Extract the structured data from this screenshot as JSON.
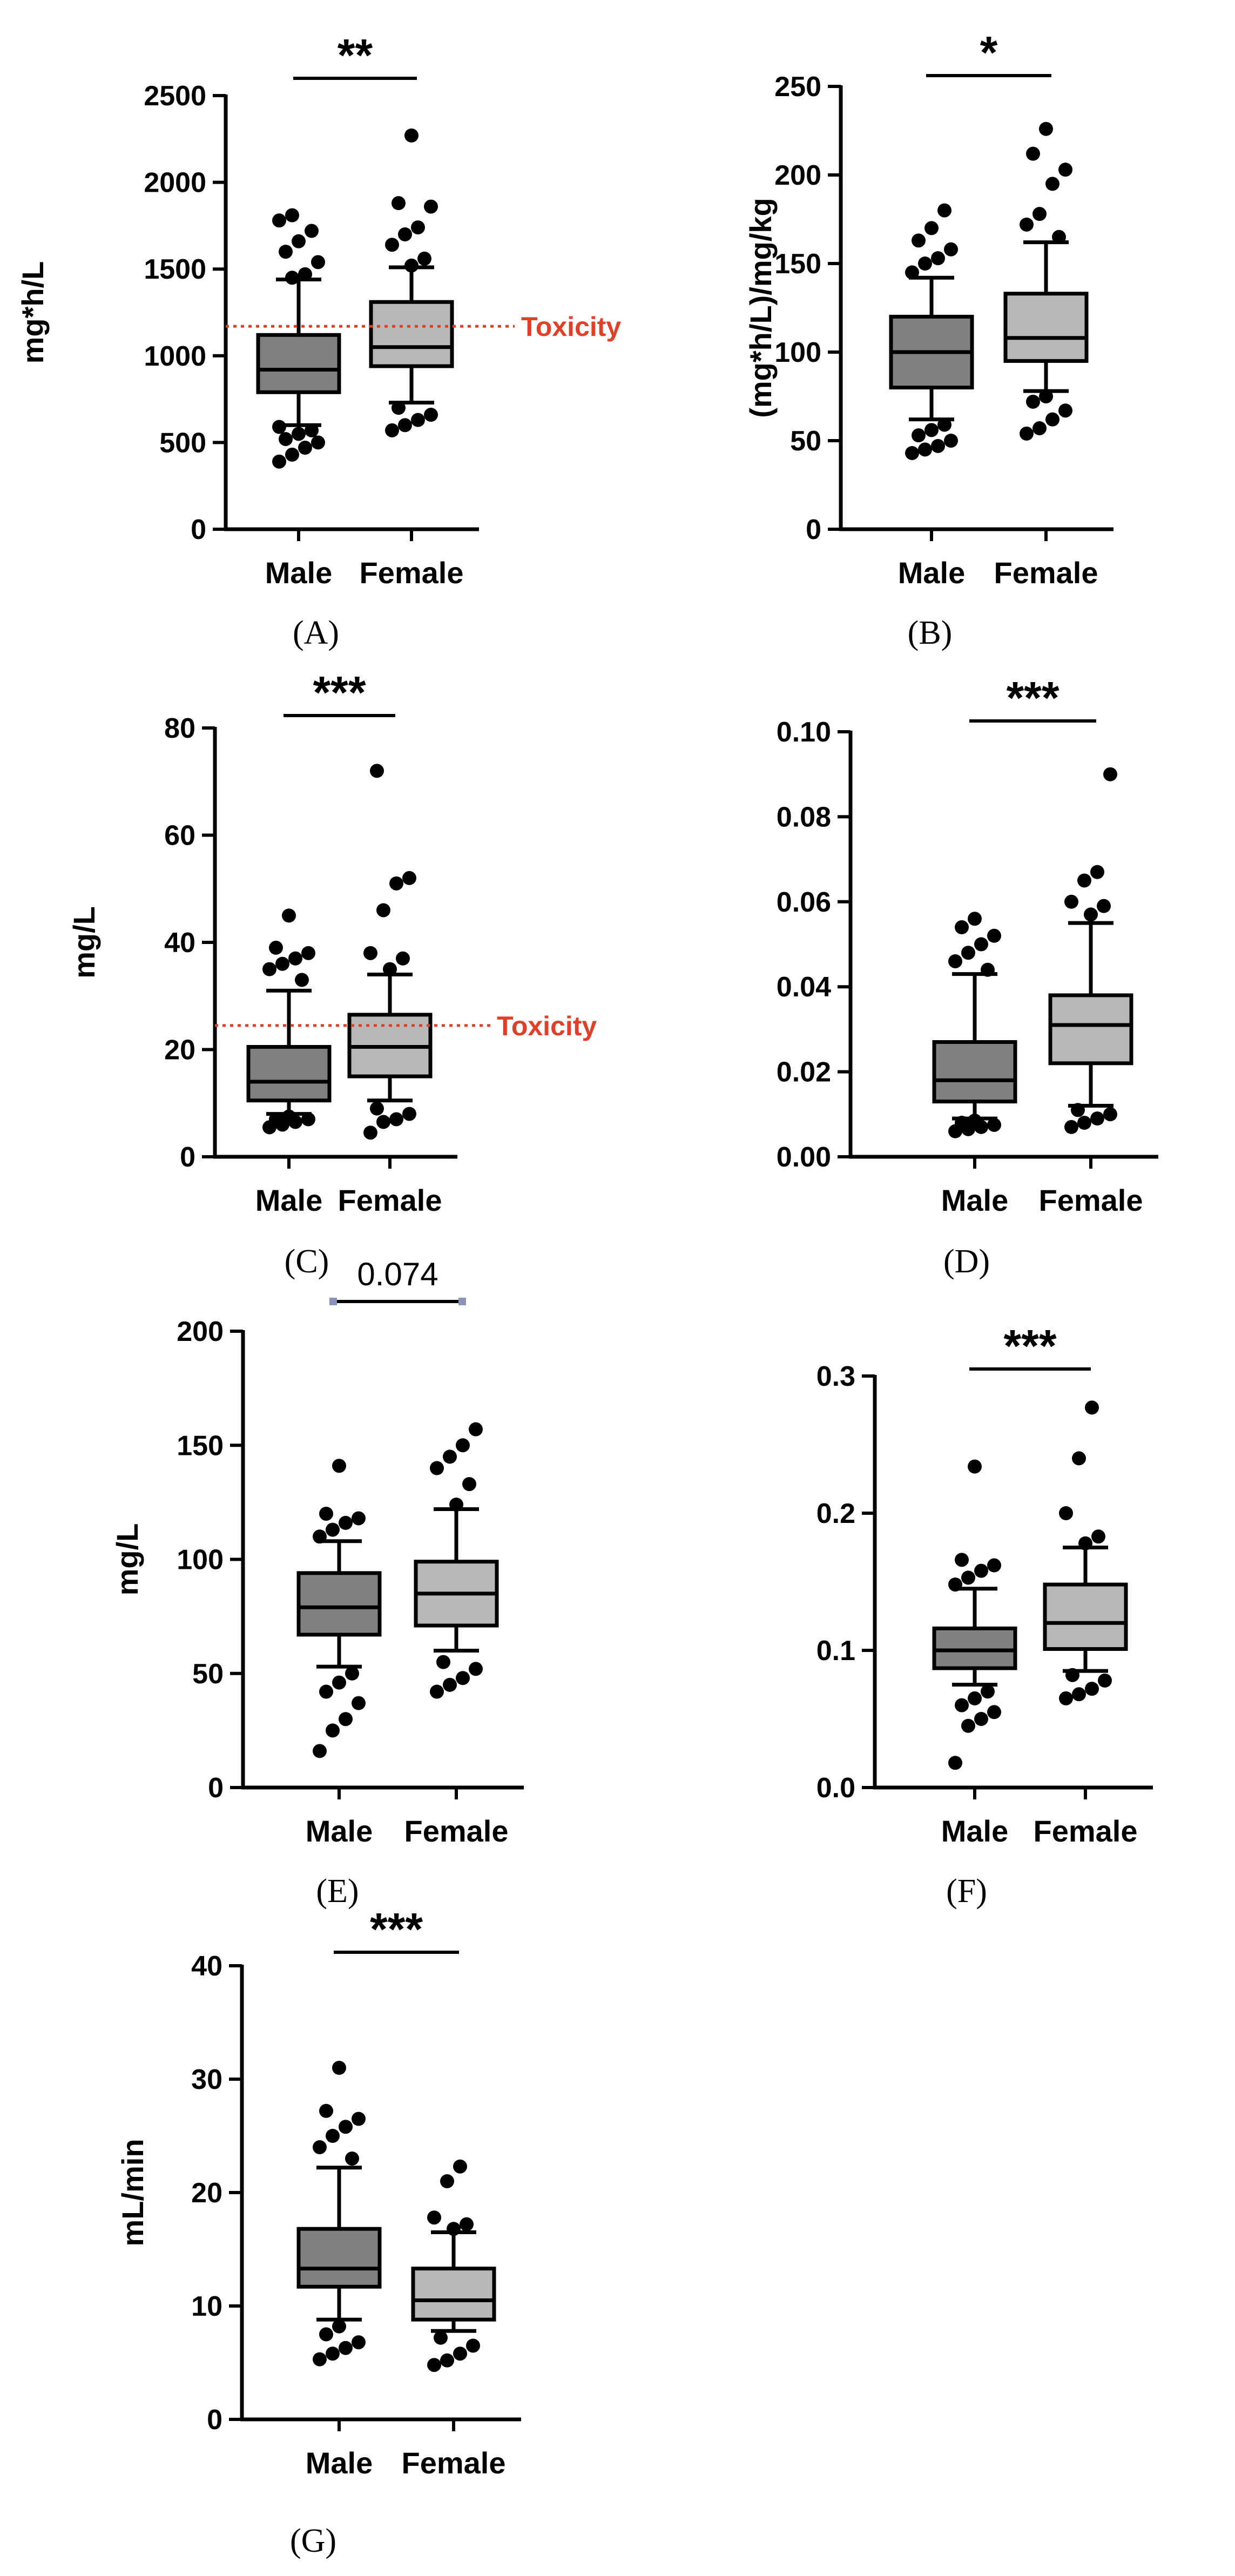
{
  "colors": {
    "male_box": "#808080",
    "female_box": "#b8b8b8",
    "axis": "#000000",
    "toxicity": "#e0402a",
    "sig_bar_endcap": "#8a94b8"
  },
  "chart_data": [
    {
      "panel": "(A)",
      "type": "box",
      "ylabel": "mg*h/L",
      "ylim": [
        0,
        2500
      ],
      "yticks": [
        "0",
        "500",
        "1000",
        "1500",
        "2000",
        "2500"
      ],
      "categories": [
        "Male",
        "Female"
      ],
      "significance": "**",
      "reference_line": {
        "label": "Toxicity",
        "value": 1170
      },
      "series": [
        {
          "name": "Male",
          "whisker_low": 600,
          "q1": 790,
          "median": 920,
          "q3": 1120,
          "whisker_high": 1440,
          "outliers": [
            390,
            430,
            470,
            500,
            520,
            550,
            570,
            590,
            1450,
            1470,
            1540,
            1600,
            1660,
            1720,
            1780,
            1810
          ]
        },
        {
          "name": "Female",
          "whisker_low": 730,
          "q1": 940,
          "median": 1050,
          "q3": 1310,
          "whisker_high": 1510,
          "outliers": [
            570,
            600,
            630,
            660,
            700,
            1520,
            1560,
            1640,
            1700,
            1740,
            1860,
            1880,
            2270
          ]
        }
      ]
    },
    {
      "panel": "(B)",
      "type": "box",
      "ylabel": "(mg*h/L)/mg/kg",
      "ylim": [
        0,
        250
      ],
      "yticks": [
        "0",
        "50",
        "100",
        "150",
        "200",
        "250"
      ],
      "categories": [
        "Male",
        "Female"
      ],
      "significance": "*",
      "series": [
        {
          "name": "Male",
          "whisker_low": 62,
          "q1": 80,
          "median": 100,
          "q3": 120,
          "whisker_high": 142,
          "outliers": [
            43,
            45,
            47,
            50,
            53,
            56,
            59,
            145,
            150,
            153,
            158,
            163,
            170,
            180
          ]
        },
        {
          "name": "Female",
          "whisker_low": 78,
          "q1": 95,
          "median": 108,
          "q3": 133,
          "whisker_high": 162,
          "outliers": [
            54,
            57,
            62,
            67,
            72,
            75,
            165,
            172,
            178,
            195,
            203,
            212,
            226
          ]
        }
      ]
    },
    {
      "panel": "(C)",
      "type": "box",
      "ylabel": "mg/L",
      "ylim": [
        0,
        80
      ],
      "yticks": [
        "0",
        "20",
        "40",
        "60",
        "80"
      ],
      "categories": [
        "Male",
        "Female"
      ],
      "significance": "***",
      "reference_line": {
        "label": "Toxicity",
        "value": 24.5
      },
      "series": [
        {
          "name": "Male",
          "whisker_low": 8,
          "q1": 10.5,
          "median": 14,
          "q3": 20.5,
          "whisker_high": 31,
          "outliers": [
            5.5,
            6,
            6.5,
            7,
            7,
            7.5,
            33,
            35,
            36,
            37,
            38,
            39,
            45
          ]
        },
        {
          "name": "Female",
          "whisker_low": 10.5,
          "q1": 15,
          "median": 20.5,
          "q3": 26.5,
          "whisker_high": 34,
          "outliers": [
            4.5,
            6.5,
            7,
            8,
            9,
            35,
            37,
            38,
            46,
            51,
            52,
            72
          ]
        }
      ]
    },
    {
      "panel": "(D)",
      "type": "box",
      "ylabel": "",
      "ylim": [
        0,
        0.1
      ],
      "yticks": [
        "0.00",
        "0.02",
        "0.04",
        "0.06",
        "0.08",
        "0.10"
      ],
      "categories": [
        "Male",
        "Female"
      ],
      "significance": "***",
      "series": [
        {
          "name": "Male",
          "whisker_low": 0.009,
          "q1": 0.013,
          "median": 0.018,
          "q3": 0.027,
          "whisker_high": 0.043,
          "outliers": [
            0.006,
            0.0065,
            0.007,
            0.0075,
            0.008,
            0.0085,
            0.044,
            0.046,
            0.048,
            0.05,
            0.052,
            0.054,
            0.056
          ]
        },
        {
          "name": "Female",
          "whisker_low": 0.012,
          "q1": 0.022,
          "median": 0.031,
          "q3": 0.038,
          "whisker_high": 0.055,
          "outliers": [
            0.007,
            0.008,
            0.009,
            0.01,
            0.011,
            0.057,
            0.059,
            0.06,
            0.065,
            0.067,
            0.09
          ]
        }
      ]
    },
    {
      "panel": "(E)",
      "type": "box",
      "ylabel": "mg/L",
      "ylim": [
        0,
        200
      ],
      "yticks": [
        "0",
        "50",
        "100",
        "150",
        "200"
      ],
      "categories": [
        "Male",
        "Female"
      ],
      "significance": "0.074",
      "series": [
        {
          "name": "Male",
          "whisker_low": 53,
          "q1": 67,
          "median": 79,
          "q3": 94,
          "whisker_high": 108,
          "outliers": [
            16,
            25,
            30,
            37,
            42,
            46,
            50,
            110,
            113,
            116,
            118,
            120,
            141
          ]
        },
        {
          "name": "Female",
          "whisker_low": 60,
          "q1": 71,
          "median": 85,
          "q3": 99,
          "whisker_high": 122,
          "outliers": [
            42,
            45,
            48,
            52,
            55,
            124,
            133,
            140,
            145,
            150,
            157
          ]
        }
      ]
    },
    {
      "panel": "(F)",
      "type": "box",
      "ylabel": "",
      "ylim": [
        0,
        0.3
      ],
      "yticks": [
        "0.0",
        "0.1",
        "0.2",
        "0.3"
      ],
      "categories": [
        "Male",
        "Female"
      ],
      "significance": "***",
      "series": [
        {
          "name": "Male",
          "whisker_low": 0.075,
          "q1": 0.087,
          "median": 0.1,
          "q3": 0.116,
          "whisker_high": 0.145,
          "outliers": [
            0.018,
            0.045,
            0.05,
            0.055,
            0.06,
            0.065,
            0.07,
            0.148,
            0.153,
            0.158,
            0.162,
            0.166,
            0.234
          ]
        },
        {
          "name": "Female",
          "whisker_low": 0.085,
          "q1": 0.101,
          "median": 0.12,
          "q3": 0.148,
          "whisker_high": 0.175,
          "outliers": [
            0.065,
            0.068,
            0.072,
            0.078,
            0.082,
            0.178,
            0.183,
            0.2,
            0.24,
            0.277
          ]
        }
      ]
    },
    {
      "panel": "(G)",
      "type": "box",
      "ylabel": "mL/min",
      "ylim": [
        0,
        40
      ],
      "yticks": [
        "0",
        "10",
        "20",
        "30",
        "40"
      ],
      "categories": [
        "Male",
        "Female"
      ],
      "significance": "***",
      "series": [
        {
          "name": "Male",
          "whisker_low": 8.8,
          "q1": 11.7,
          "median": 13.3,
          "q3": 16.8,
          "whisker_high": 22.2,
          "outliers": [
            5.3,
            5.8,
            6.3,
            6.8,
            7.5,
            8.2,
            23,
            24,
            25,
            25.8,
            26.5,
            27.2,
            31
          ]
        },
        {
          "name": "Female",
          "whisker_low": 7.8,
          "q1": 8.8,
          "median": 10.5,
          "q3": 13.3,
          "whisker_high": 16.5,
          "outliers": [
            4.8,
            5.2,
            5.8,
            6.5,
            7.2,
            16.8,
            17.2,
            17.8,
            21,
            22.3
          ]
        }
      ]
    }
  ]
}
